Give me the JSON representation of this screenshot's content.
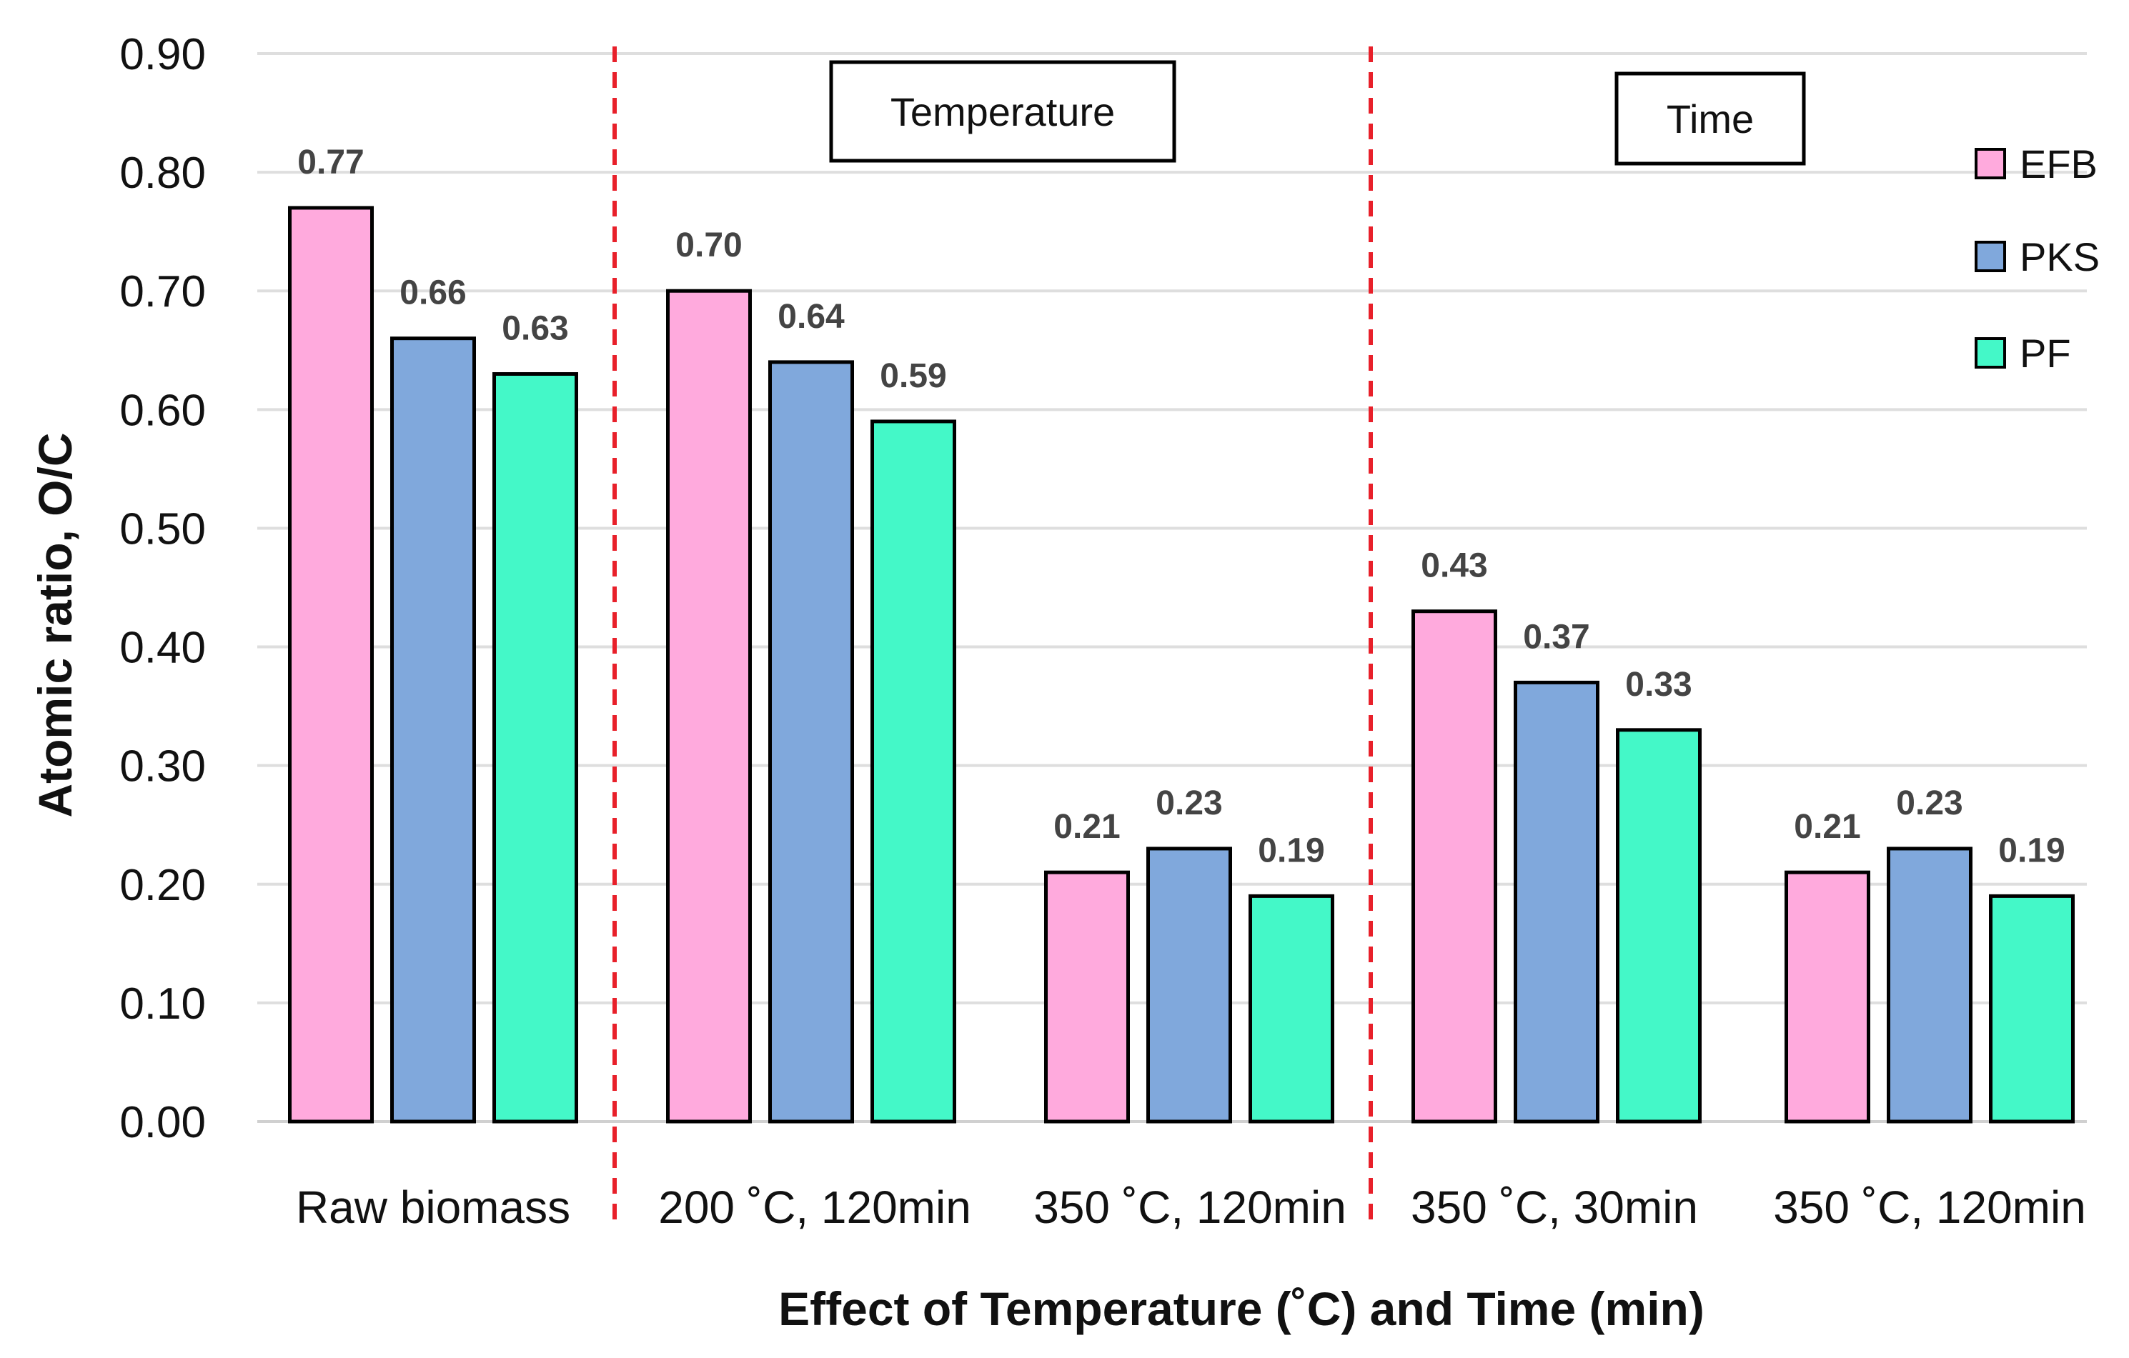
{
  "chart_data": {
    "type": "bar",
    "title": "",
    "xlabel": "Effect of Temperature (˚C) and Time (min)",
    "ylabel": "Atomic ratio, O/C",
    "ylim": [
      0,
      0.9
    ],
    "yticks": [
      "0.00",
      "0.10",
      "0.20",
      "0.30",
      "0.40",
      "0.50",
      "0.60",
      "0.70",
      "0.80",
      "0.90"
    ],
    "grid": true,
    "legend_position": "right",
    "categories": [
      "Raw biomass",
      "200 ˚C, 120min",
      "350 ˚C, 120min",
      "350 ˚C, 30min",
      "350 ˚C, 120min"
    ],
    "series": [
      {
        "name": "EFB",
        "color": "#ffaadd",
        "values": [
          0.77,
          0.7,
          0.21,
          0.43,
          0.21
        ],
        "labels": [
          "0.77",
          "0.70",
          "0.21",
          "0.43",
          "0.21"
        ]
      },
      {
        "name": "PKS",
        "color": "#80a8dc",
        "values": [
          0.66,
          0.64,
          0.23,
          0.37,
          0.23
        ],
        "labels": [
          "0.66",
          "0.64",
          "0.23",
          "0.37",
          "0.23"
        ]
      },
      {
        "name": "PF",
        "color": "#44f8c8",
        "values": [
          0.63,
          0.59,
          0.19,
          0.33,
          0.19
        ],
        "labels": [
          "0.63",
          "0.59",
          "0.19",
          "0.33",
          "0.19"
        ]
      }
    ],
    "annotations": [
      {
        "text": "Temperature",
        "type": "boxed-label"
      },
      {
        "text": "Time",
        "type": "boxed-label"
      }
    ],
    "separators": {
      "style": "dashed",
      "color": "#e8202a",
      "after_categories": [
        0,
        2
      ]
    }
  }
}
